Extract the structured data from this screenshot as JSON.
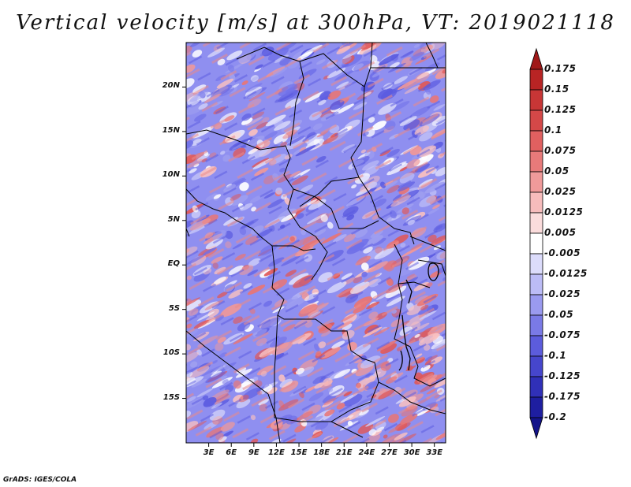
{
  "title": "Vertical velocity [m/s] at 300hPa, VT: 2019021118",
  "credit": "GrADS: IGES/COLA",
  "map": {
    "lat_ticks": [
      "20N",
      "15N",
      "10N",
      "5N",
      "EQ",
      "5S",
      "10S",
      "15S"
    ],
    "lat_values": [
      20,
      15,
      10,
      5,
      0,
      -5,
      -10,
      -15
    ],
    "lon_ticks": [
      "3E",
      "6E",
      "9E",
      "12E",
      "15E",
      "18E",
      "21E",
      "24E",
      "27E",
      "30E",
      "33E"
    ],
    "lon_values": [
      3,
      6,
      9,
      12,
      15,
      18,
      21,
      24,
      27,
      30,
      33
    ],
    "lat_range": [
      -20,
      25
    ],
    "lon_range": [
      0,
      34.5
    ]
  },
  "colorbar": {
    "labels": [
      "0.175",
      "0.15",
      "0.125",
      "0.1",
      "0.075",
      "0.05",
      "0.025",
      "0.0125",
      "0.005",
      "-0.005",
      "-0.0125",
      "-0.025",
      "-0.05",
      "-0.075",
      "-0.1",
      "-0.125",
      "-0.175",
      "-0.2"
    ],
    "colors": [
      "#a01818",
      "#b82424",
      "#c83636",
      "#d44848",
      "#e06060",
      "#e87a7a",
      "#f09a9a",
      "#f7bcbc",
      "#fbdcdc",
      "#ffffff",
      "#dcdcfb",
      "#bcbcf6",
      "#9a9aef",
      "#7a7ae6",
      "#5c5cdc",
      "#4646cc",
      "#3030b8",
      "#1e1ea0",
      "#14148a"
    ]
  }
}
